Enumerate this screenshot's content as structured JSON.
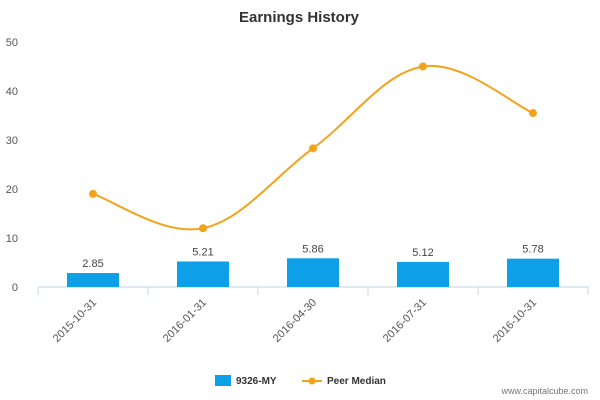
{
  "chart_data": {
    "type": "bar",
    "title": "Earnings History",
    "categories": [
      "2015-10-31",
      "2016-01-31",
      "2016-04-30",
      "2016-07-31",
      "2016-10-31"
    ],
    "series": [
      {
        "name": "9326-MY",
        "type": "bar",
        "color": "#0d9fe8",
        "values": [
          2.85,
          5.21,
          5.86,
          5.12,
          5.78
        ],
        "labels": [
          "2.85",
          "5.21",
          "5.86",
          "5.12",
          "5.78"
        ]
      },
      {
        "name": "Peer Median",
        "type": "line",
        "color": "#f5a21b",
        "values": [
          19.0,
          12.0,
          28.3,
          45.0,
          35.5
        ]
      }
    ],
    "ylim": [
      0,
      50
    ],
    "yticks": [
      "0",
      "10",
      "20",
      "30",
      "40",
      "50"
    ],
    "xlabel": "",
    "ylabel": "",
    "grid": false,
    "legend_position": "bottom-center"
  },
  "watermark": "www.capitalcube.com"
}
